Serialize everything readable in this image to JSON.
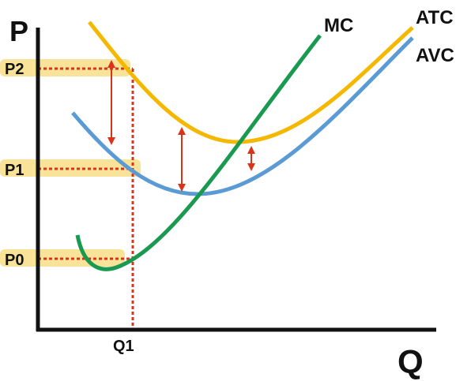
{
  "axes": {
    "y_label": "P",
    "x_label": "Q"
  },
  "price_levels": [
    "P2",
    "P1",
    "P0"
  ],
  "quantity_levels": [
    "Q1"
  ],
  "curves": [
    "MC",
    "ATC",
    "AVC"
  ]
}
